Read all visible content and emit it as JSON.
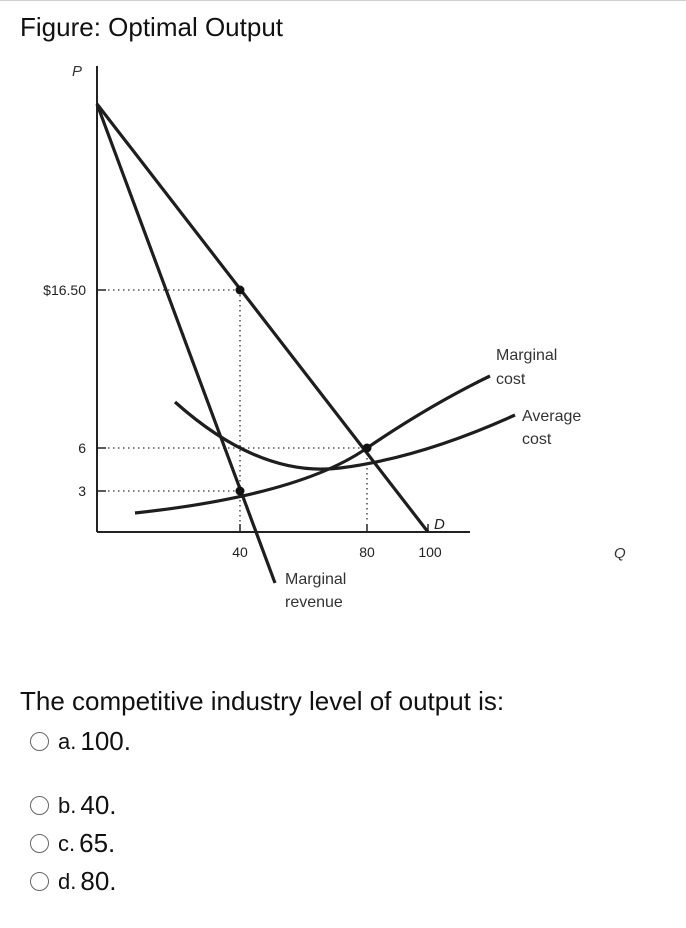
{
  "figure": {
    "title": "Figure: Optimal Output"
  },
  "chart_data": {
    "type": "line",
    "axis_labels": {
      "y": "P",
      "x": "Q"
    },
    "y_ticks": [
      "$16.50",
      "6",
      "3"
    ],
    "x_ticks": [
      "40",
      "80",
      "100"
    ],
    "curve_labels": {
      "demand": "D",
      "marginal_revenue": [
        "Marginal",
        "revenue"
      ],
      "marginal_cost": [
        "Marginal",
        "cost"
      ],
      "average_cost": [
        "Average",
        "cost"
      ]
    },
    "points_of_interest": [
      {
        "q": 40,
        "p": 16.5,
        "note": "demand at Q=40"
      },
      {
        "q": 80,
        "p": 6,
        "note": "demand meets marginal cost"
      },
      {
        "q": 40,
        "p": 3,
        "note": "marginal revenue meets marginal cost"
      }
    ]
  },
  "question": {
    "text": "The competitive industry level of output is:",
    "options": [
      {
        "letter": "a.",
        "value": "100."
      },
      {
        "letter": "b.",
        "value": "40."
      },
      {
        "letter": "c.",
        "value": "65."
      },
      {
        "letter": "d.",
        "value": "80."
      }
    ]
  }
}
